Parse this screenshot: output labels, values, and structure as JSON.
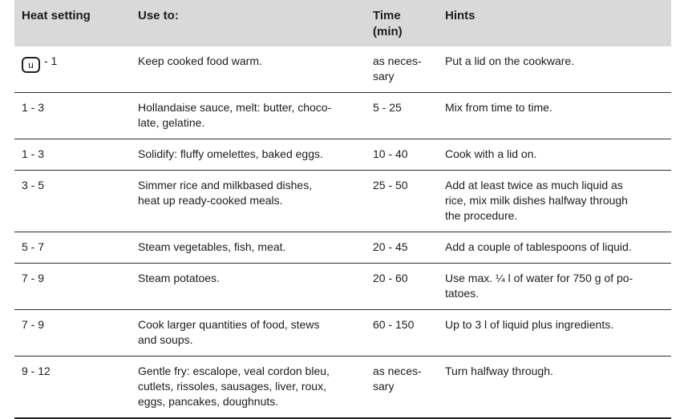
{
  "colors": {
    "header_bg": "#d9d9d9",
    "text": "#1c1c1e",
    "row_separator": "#2e2e2e",
    "bottom_border": "#1f1f1f"
  },
  "table": {
    "columns": [
      {
        "label": "Heat setting"
      },
      {
        "label": "Use to:"
      },
      {
        "label": "Time\n(min)"
      },
      {
        "label": "Hints"
      }
    ],
    "rows": [
      {
        "warm_icon": true,
        "warm_icon_glyph": "u",
        "heat_setting": "- 1",
        "use_to": "Keep cooked food warm.",
        "time": "as neces-\nsary",
        "hints": "Put a lid on the cookware."
      },
      {
        "heat_setting": "1 - 3",
        "use_to": "Hollandaise sauce, melt: butter, choco-\nlate, gelatine.",
        "time": "5 - 25",
        "hints": "Mix from time to time."
      },
      {
        "heat_setting": "1 - 3",
        "use_to": "Solidify: fluffy omelettes, baked eggs.",
        "time": "10 - 40",
        "hints": "Cook with a lid on."
      },
      {
        "heat_setting": "3 - 5",
        "use_to": "Simmer rice and milkbased dishes,\nheat up ready-cooked meals.",
        "time": "25 - 50",
        "hints": "Add at least twice as much liquid as\nrice, mix milk dishes halfway through\nthe procedure."
      },
      {
        "heat_setting": "5 - 7",
        "use_to": "Steam vegetables, fish, meat.",
        "time": "20 - 45",
        "hints": "Add a couple of tablespoons of liquid."
      },
      {
        "heat_setting": "7 - 9",
        "use_to": "Steam potatoes.",
        "time": "20 - 60",
        "hints": "Use max. ¼ l of water for 750 g of po-\ntatoes."
      },
      {
        "heat_setting": "7 - 9",
        "use_to": "Cook larger quantities of food, stews\nand soups.",
        "time": "60 - 150",
        "hints": "Up to 3 l of liquid plus ingredients."
      },
      {
        "heat_setting": "9 - 12",
        "use_to": "Gentle fry: escalope, veal cordon bleu,\ncutlets, rissoles, sausages, liver, roux,\neggs, pancakes, doughnuts.",
        "time": "as neces-\nsary",
        "hints": "Turn halfway through."
      }
    ]
  }
}
